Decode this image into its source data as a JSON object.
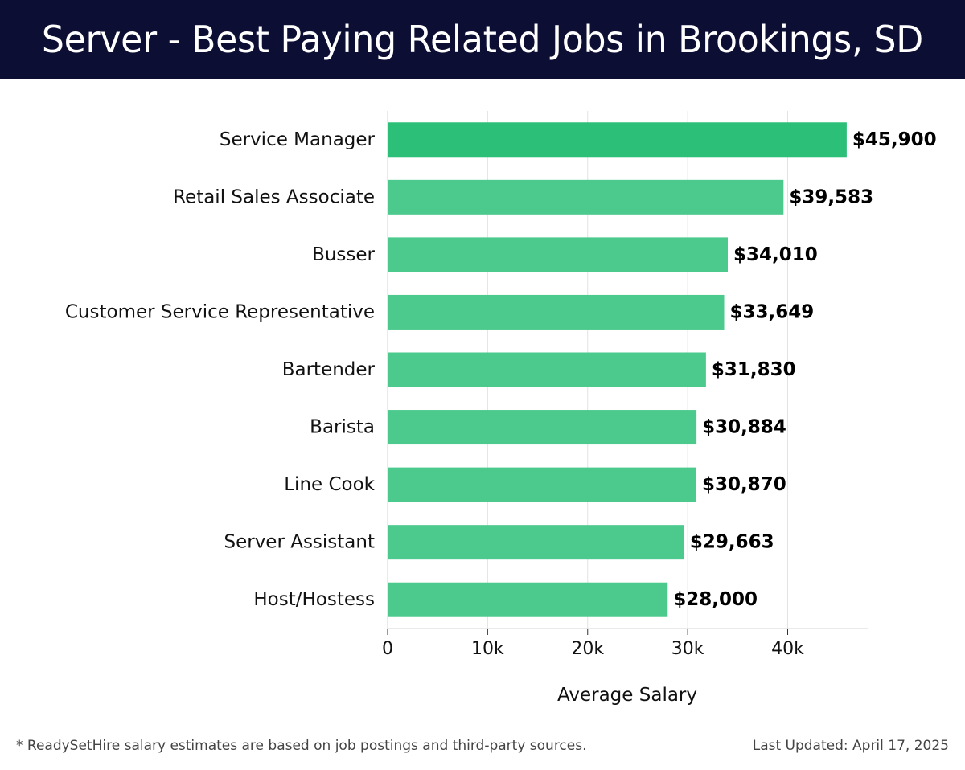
{
  "header": {
    "title": "Server - Best Paying Related Jobs in Brookings, SD"
  },
  "chart_data": {
    "type": "bar",
    "orientation": "horizontal",
    "categories": [
      "Service Manager",
      "Retail Sales Associate",
      "Busser",
      "Customer Service Representative",
      "Bartender",
      "Barista",
      "Line Cook",
      "Server Assistant",
      "Host/Hostess"
    ],
    "values": [
      45900,
      39583,
      34010,
      33649,
      31830,
      30884,
      30870,
      29663,
      28000
    ],
    "value_labels": [
      "$45,900",
      "$39,583",
      "$34,010",
      "$33,649",
      "$31,830",
      "$30,884",
      "$30,870",
      "$29,663",
      "$28,000"
    ],
    "xlabel": "Average Salary",
    "ylabel": "",
    "xlim": [
      0,
      48000
    ],
    "x_ticks": [
      0,
      10000,
      20000,
      30000,
      40000
    ],
    "x_tick_labels": [
      "0",
      "10k",
      "20k",
      "30k",
      "40k"
    ],
    "grid": true,
    "colors": {
      "top_bar": "#2bbf78",
      "bar": "#4cc98c",
      "header_bg": "#0c0e33"
    }
  },
  "footer": {
    "note": "* ReadySetHire salary estimates are based on job postings and third-party sources.",
    "updated": "Last Updated: April 17, 2025"
  }
}
